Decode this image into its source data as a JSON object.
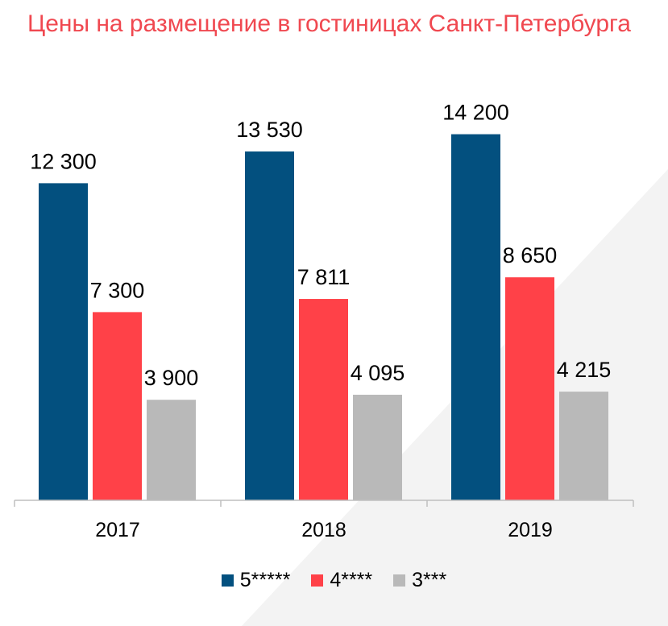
{
  "title": "Цены на размещение в гостиницах Санкт-Петербурга",
  "colors": {
    "title": "#f04850",
    "series": [
      "#03507f",
      "#ff4148",
      "#b9b9b9"
    ]
  },
  "chart_data": {
    "type": "bar",
    "categories": [
      "2017",
      "2018",
      "2019"
    ],
    "series": [
      {
        "name": "5*****",
        "values": [
          12300,
          13530,
          14200
        ],
        "labels": [
          "12 300",
          "13 530",
          "14 200"
        ]
      },
      {
        "name": "4****",
        "values": [
          7300,
          7811,
          8650
        ],
        "labels": [
          "7 300",
          "7 811",
          "8 650"
        ]
      },
      {
        "name": "3***",
        "values": [
          3900,
          4095,
          4215
        ],
        "labels": [
          "3 900",
          "4 095",
          "4 215"
        ]
      }
    ],
    "ylim": [
      0,
      16000
    ],
    "grid": false,
    "legend": "bottom"
  }
}
